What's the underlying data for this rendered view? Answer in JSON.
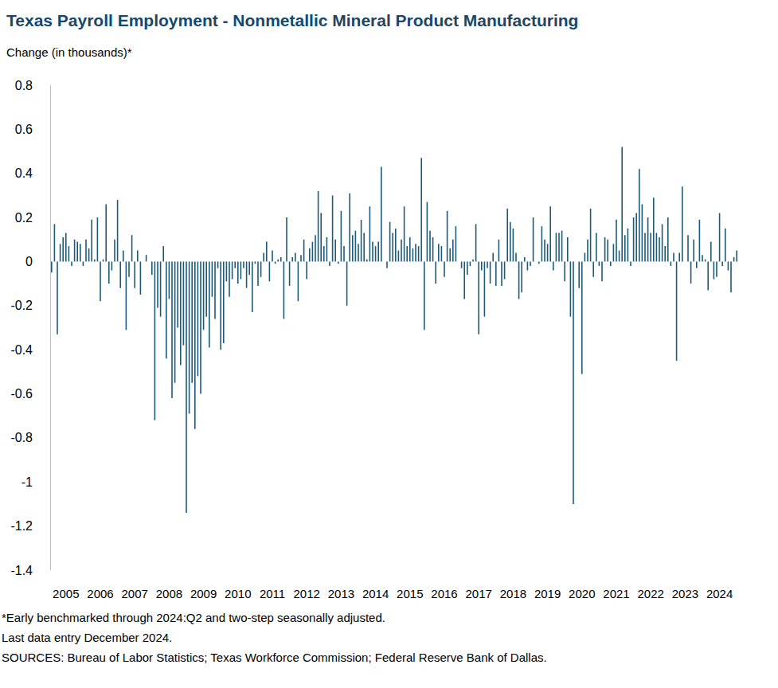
{
  "chart_data": {
    "type": "bar",
    "title": "Texas Payroll Employment - Nonmetallic Mineral Product Manufacturing",
    "y_label": "Change (in thousands)*",
    "notes": [
      "*Early benchmarked through 2024:Q2 and two-step seasonally adjusted.",
      "Last data entry December 2024.",
      "SOURCES: Bureau of Labor Statistics; Texas Workforce Commission; Federal Reserve Bank of Dallas."
    ],
    "color": "#1b5a7a",
    "grid": false,
    "ylim": [
      -1.4,
      0.8
    ],
    "yticks": [
      -1.4,
      -1.2,
      -1,
      -0.8,
      -0.6,
      -0.4,
      -0.2,
      0,
      0.2,
      0.4,
      0.6,
      0.8
    ],
    "categories": [
      null,
      null,
      null,
      null,
      null,
      "2005",
      null,
      null,
      null,
      null,
      null,
      null,
      null,
      null,
      null,
      null,
      null,
      "2006",
      null,
      null,
      null,
      null,
      null,
      null,
      null,
      null,
      null,
      null,
      null,
      "2007",
      null,
      null,
      null,
      null,
      null,
      null,
      null,
      null,
      null,
      null,
      null,
      "2008",
      null,
      null,
      null,
      null,
      null,
      null,
      null,
      null,
      null,
      null,
      null,
      "2009",
      null,
      null,
      null,
      null,
      null,
      null,
      null,
      null,
      null,
      null,
      null,
      "2010",
      null,
      null,
      null,
      null,
      null,
      null,
      null,
      null,
      null,
      null,
      null,
      "2011",
      null,
      null,
      null,
      null,
      null,
      null,
      null,
      null,
      null,
      null,
      null,
      "2012",
      null,
      null,
      null,
      null,
      null,
      null,
      null,
      null,
      null,
      null,
      null,
      "2013",
      null,
      null,
      null,
      null,
      null,
      null,
      null,
      null,
      null,
      null,
      null,
      "2014",
      null,
      null,
      null,
      null,
      null,
      null,
      null,
      null,
      null,
      null,
      null,
      "2015",
      null,
      null,
      null,
      null,
      null,
      null,
      null,
      null,
      null,
      null,
      null,
      "2016",
      null,
      null,
      null,
      null,
      null,
      null,
      null,
      null,
      null,
      null,
      null,
      "2017",
      null,
      null,
      null,
      null,
      null,
      null,
      null,
      null,
      null,
      null,
      null,
      "2018",
      null,
      null,
      null,
      null,
      null,
      null,
      null,
      null,
      null,
      null,
      null,
      "2019",
      null,
      null,
      null,
      null,
      null,
      null,
      null,
      null,
      null,
      null,
      null,
      "2020",
      null,
      null,
      null,
      null,
      null,
      null,
      null,
      null,
      null,
      null,
      null,
      "2021",
      null,
      null,
      null,
      null,
      null,
      null,
      null,
      null,
      null,
      null,
      null,
      "2022",
      null,
      null,
      null,
      null,
      null,
      null,
      null,
      null,
      null,
      null,
      null,
      "2023",
      null,
      null,
      null,
      null,
      null,
      null,
      null,
      null,
      null,
      null,
      null,
      "2024",
      null,
      null,
      null,
      null,
      null,
      null
    ],
    "values": [
      -0.05,
      0.17,
      -0.33,
      0.08,
      0.11,
      0.13,
      0.07,
      -0.02,
      0.1,
      0.09,
      0.08,
      -0.02,
      0.1,
      0.06,
      0.19,
      0.01,
      0.2,
      -0.18,
      0.01,
      0.26,
      -0.1,
      -0.04,
      0.1,
      0.28,
      -0.12,
      0.05,
      -0.31,
      -0.07,
      0.12,
      -0.12,
      0.05,
      -0.15,
      0.0,
      0.03,
      0.0,
      -0.06,
      -0.72,
      -0.21,
      -0.25,
      0.07,
      -0.44,
      -0.17,
      -0.62,
      -0.55,
      -0.3,
      -0.47,
      -0.38,
      -1.14,
      -0.69,
      -0.55,
      -0.76,
      -0.52,
      -0.6,
      -0.31,
      -0.25,
      -0.39,
      -0.16,
      -0.26,
      -0.03,
      -0.4,
      -0.37,
      -0.09,
      -0.16,
      -0.08,
      -0.03,
      -0.1,
      -0.08,
      -0.03,
      -0.12,
      -0.06,
      -0.23,
      -0.01,
      -0.11,
      -0.07,
      0.04,
      0.09,
      -0.09,
      0.05,
      -0.01,
      0.01,
      0.02,
      -0.26,
      0.2,
      -0.11,
      0.02,
      0.04,
      -0.18,
      0.03,
      0.1,
      -0.08,
      0.06,
      0.09,
      0.12,
      0.32,
      0.22,
      0.07,
      0.11,
      -0.02,
      0.3,
      0.1,
      -0.01,
      0.23,
      0.07,
      -0.2,
      0.31,
      0.12,
      0.14,
      0.08,
      0.19,
      0.13,
      0.01,
      0.25,
      0.09,
      0.07,
      0.09,
      0.43,
      0.0,
      -0.03,
      0.18,
      0.13,
      0.15,
      0.05,
      0.1,
      0.25,
      0.07,
      0.11,
      0.06,
      0.08,
      0.07,
      0.47,
      -0.31,
      0.27,
      0.14,
      0.11,
      -0.1,
      0.08,
      0.07,
      -0.07,
      0.23,
      0.06,
      0.1,
      0.16,
      0.0,
      -0.03,
      -0.17,
      -0.06,
      -0.02,
      0.01,
      0.17,
      -0.33,
      -0.04,
      -0.25,
      -0.03,
      -0.1,
      0.04,
      -0.11,
      0.1,
      -0.11,
      -0.08,
      0.24,
      0.18,
      0.15,
      0.04,
      -0.17,
      -0.14,
      0.02,
      -0.04,
      -0.02,
      0.2,
      0.0,
      -0.01,
      0.16,
      0.1,
      0.08,
      0.25,
      -0.04,
      0.13,
      0.13,
      0.14,
      -0.09,
      0.11,
      -0.25,
      -1.1,
      0.0,
      -0.12,
      -0.51,
      0.04,
      0.1,
      0.24,
      -0.07,
      0.13,
      -0.02,
      -0.09,
      0.11,
      0.1,
      -0.02,
      0.08,
      0.19,
      0.05,
      0.52,
      0.12,
      0.15,
      -0.02,
      0.2,
      0.22,
      0.42,
      0.26,
      0.13,
      0.2,
      0.13,
      0.29,
      0.13,
      0.11,
      0.17,
      0.07,
      0.2,
      -0.02,
      0.04,
      -0.45,
      0.04,
      0.34,
      0.0,
      0.12,
      -0.1,
      0.1,
      -0.03,
      0.19,
      0.03,
      0.01,
      -0.13,
      0.09,
      -0.08,
      -0.07,
      0.22,
      -0.02,
      0.15,
      -0.04,
      -0.14,
      0.02,
      0.05
    ]
  }
}
